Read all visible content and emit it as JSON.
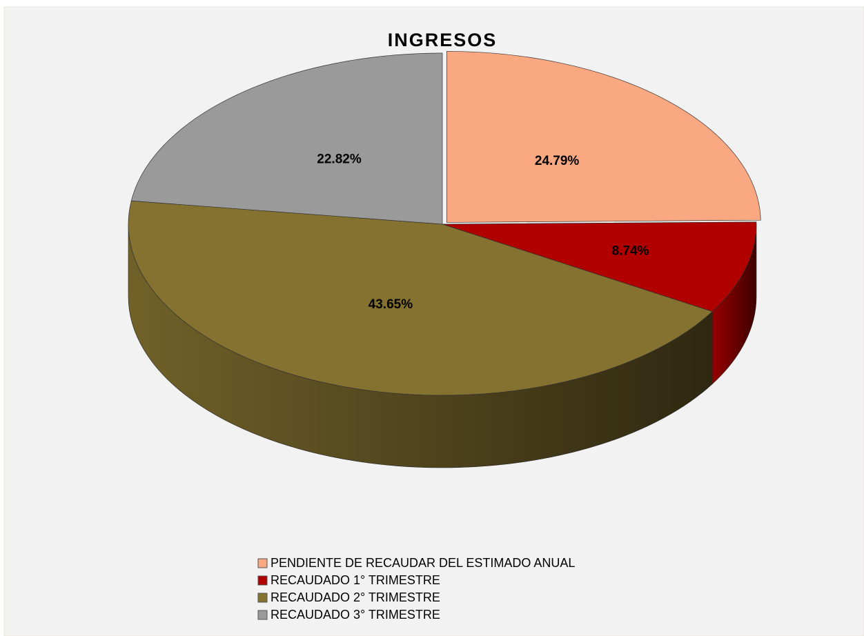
{
  "chart_data": {
    "type": "pie",
    "title": "INGRESOS",
    "categories": [
      "PENDIENTE DE RECAUDAR DEL ESTIMADO ANUAL",
      "RECAUDADO 1° TRIMESTRE",
      "RECAUDADO 2° TRIMESTRE",
      "RECAUDADO 3° TRIMESTRE"
    ],
    "values": [
      24.79,
      8.74,
      43.65,
      22.82
    ],
    "value_labels": [
      "24.79%",
      "8.74%",
      "43.65%",
      "22.82%"
    ],
    "colors": [
      "#f9a882",
      "#b00000",
      "#857230",
      "#9a9a9a"
    ],
    "legend": "bottom"
  }
}
